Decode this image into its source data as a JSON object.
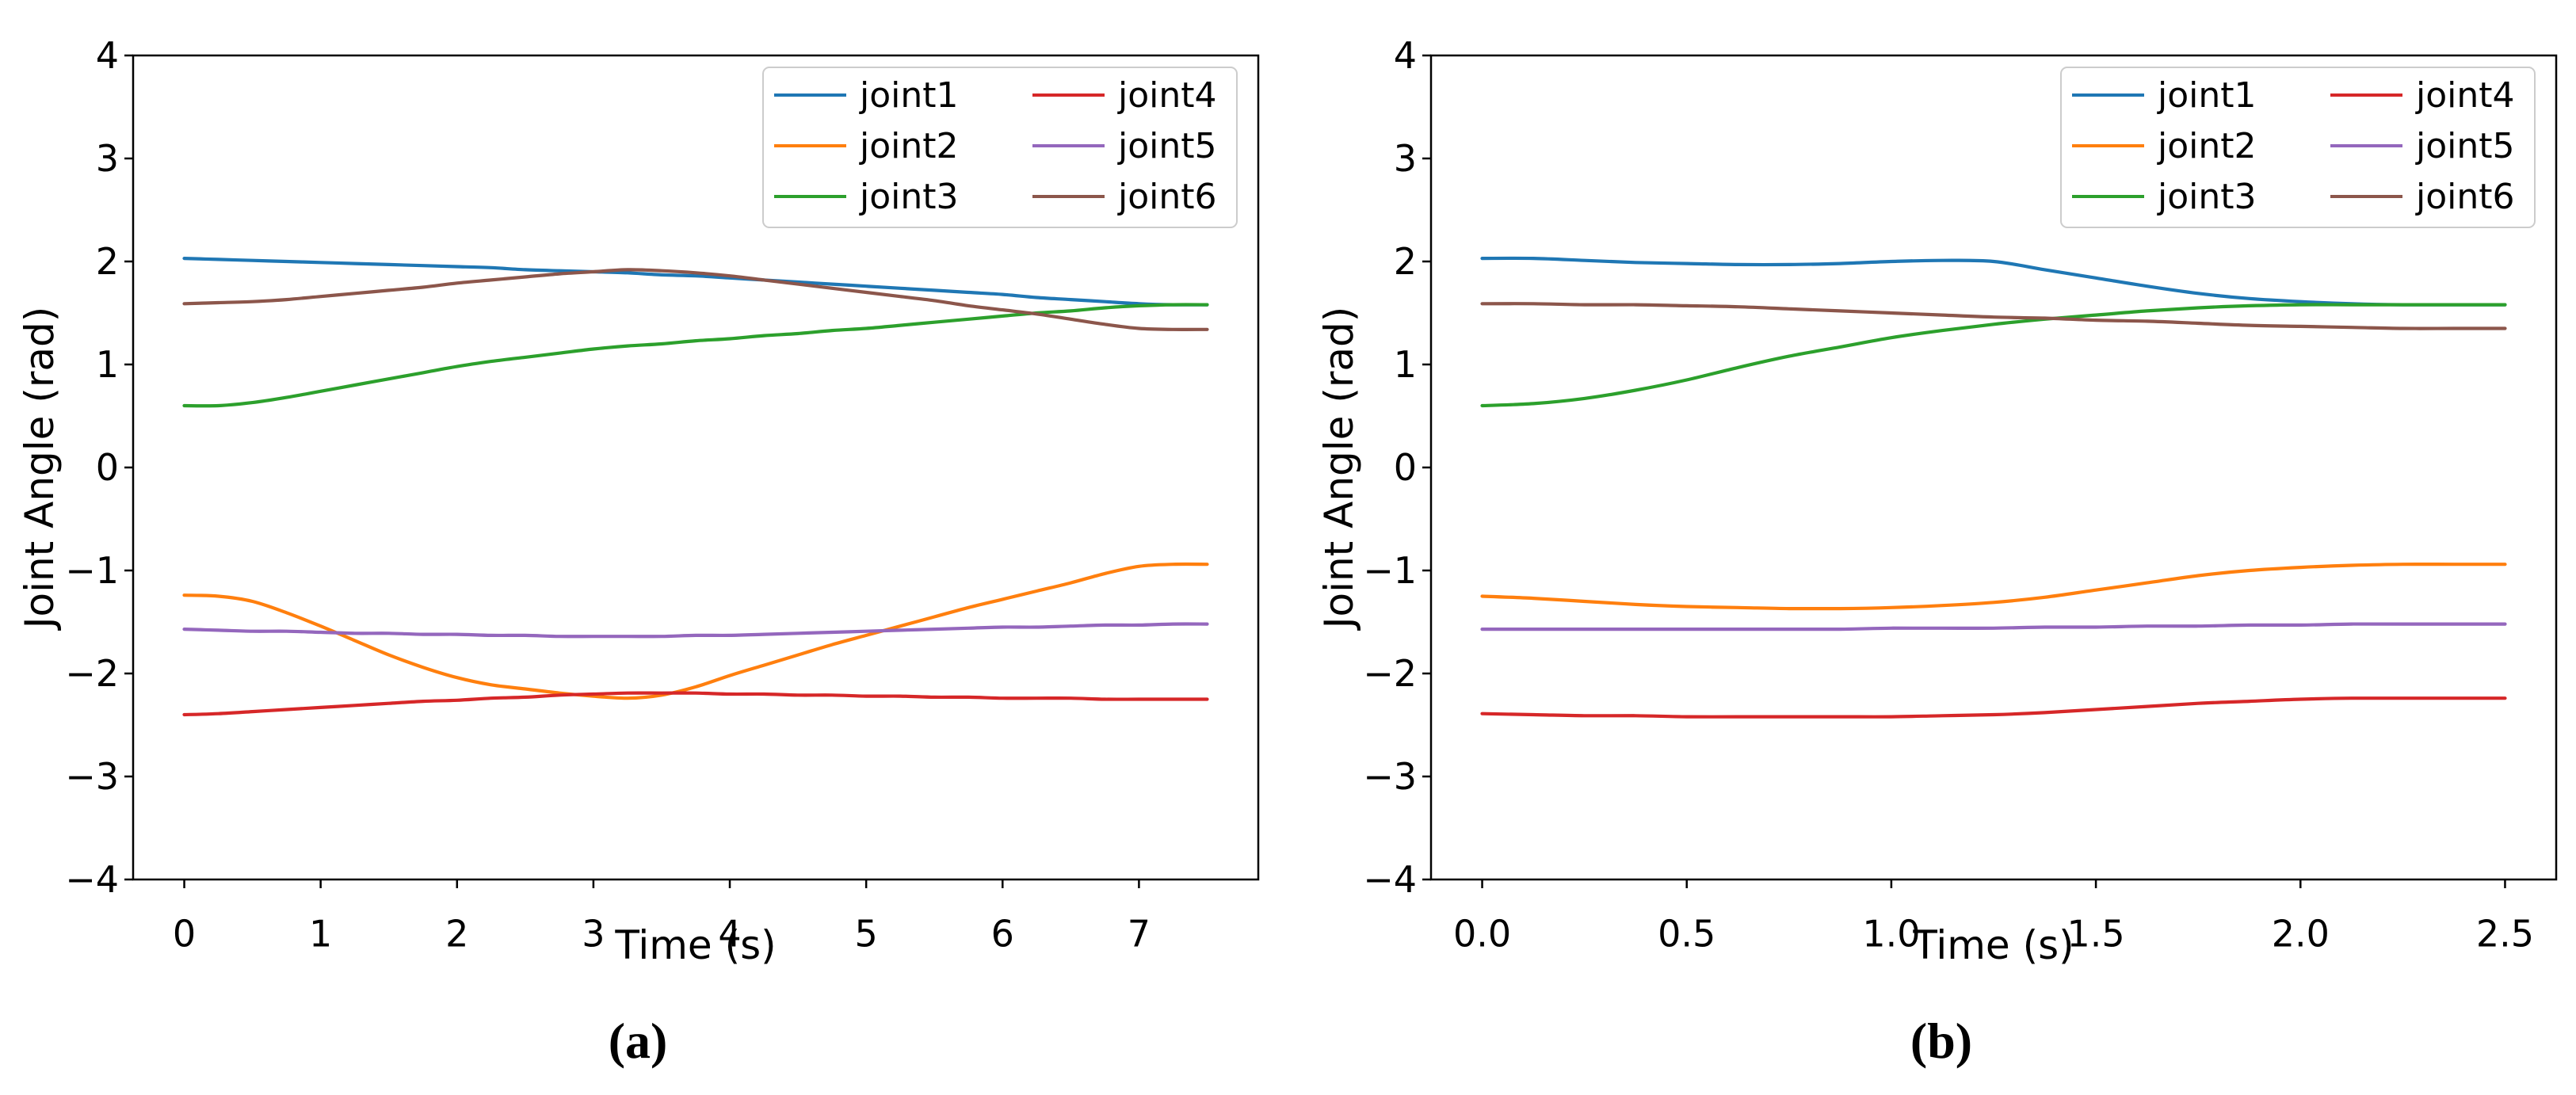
{
  "chart_data": [
    {
      "id": "a",
      "type": "line",
      "caption": "(a)",
      "xlabel": "Time (s)",
      "ylabel": "Joint Angle (rad)",
      "xlim": [
        -0.375,
        7.875
      ],
      "ylim": [
        -4,
        4
      ],
      "grid": false,
      "legend_position": "upper right",
      "xticks": {
        "values": [
          0,
          1,
          2,
          3,
          4,
          5,
          6,
          7
        ],
        "labels": [
          "0",
          "1",
          "2",
          "3",
          "4",
          "5",
          "6",
          "7"
        ]
      },
      "yticks": {
        "values": [
          -4,
          -3,
          -2,
          -1,
          0,
          1,
          2,
          3,
          4
        ],
        "labels": [
          "−4",
          "−3",
          "−2",
          "−1",
          "0",
          "1",
          "2",
          "3",
          "4"
        ]
      },
      "x": [
        0,
        0.25,
        0.5,
        0.75,
        1,
        1.25,
        1.5,
        1.75,
        2,
        2.25,
        2.5,
        2.75,
        3,
        3.25,
        3.5,
        3.75,
        4,
        4.25,
        4.5,
        4.75,
        5,
        5.25,
        5.5,
        5.75,
        6,
        6.25,
        6.5,
        6.75,
        7,
        7.25,
        7.5
      ],
      "series": [
        {
          "name": "joint1",
          "color": "#1f77b4",
          "values": [
            2.03,
            2.02,
            2.01,
            2.0,
            1.99,
            1.98,
            1.97,
            1.96,
            1.95,
            1.94,
            1.92,
            1.91,
            1.9,
            1.89,
            1.87,
            1.86,
            1.84,
            1.82,
            1.8,
            1.78,
            1.76,
            1.74,
            1.72,
            1.7,
            1.68,
            1.65,
            1.63,
            1.61,
            1.59,
            1.58,
            1.58
          ]
        },
        {
          "name": "joint2",
          "color": "#ff7f0e",
          "values": [
            -1.24,
            -1.25,
            -1.3,
            -1.41,
            -1.54,
            -1.68,
            -1.82,
            -1.94,
            -2.04,
            -2.11,
            -2.15,
            -2.19,
            -2.22,
            -2.24,
            -2.21,
            -2.13,
            -2.02,
            -1.92,
            -1.82,
            -1.72,
            -1.63,
            -1.54,
            -1.45,
            -1.36,
            -1.28,
            -1.2,
            -1.12,
            -1.03,
            -0.96,
            -0.94,
            -0.94
          ]
        },
        {
          "name": "joint3",
          "color": "#2ca02c",
          "values": [
            0.6,
            0.6,
            0.63,
            0.68,
            0.74,
            0.8,
            0.86,
            0.92,
            0.98,
            1.03,
            1.07,
            1.11,
            1.15,
            1.18,
            1.2,
            1.23,
            1.25,
            1.28,
            1.3,
            1.33,
            1.35,
            1.38,
            1.41,
            1.44,
            1.47,
            1.5,
            1.52,
            1.55,
            1.57,
            1.58,
            1.58
          ]
        },
        {
          "name": "joint4",
          "color": "#d62728",
          "values": [
            -2.4,
            -2.39,
            -2.37,
            -2.35,
            -2.33,
            -2.31,
            -2.29,
            -2.27,
            -2.26,
            -2.24,
            -2.23,
            -2.21,
            -2.2,
            -2.19,
            -2.19,
            -2.19,
            -2.2,
            -2.2,
            -2.21,
            -2.21,
            -2.22,
            -2.22,
            -2.23,
            -2.23,
            -2.24,
            -2.24,
            -2.24,
            -2.25,
            -2.25,
            -2.25,
            -2.25
          ]
        },
        {
          "name": "joint5",
          "color": "#9467bd",
          "values": [
            -1.57,
            -1.58,
            -1.59,
            -1.59,
            -1.6,
            -1.61,
            -1.61,
            -1.62,
            -1.62,
            -1.63,
            -1.63,
            -1.64,
            -1.64,
            -1.64,
            -1.64,
            -1.63,
            -1.63,
            -1.62,
            -1.61,
            -1.6,
            -1.59,
            -1.58,
            -1.57,
            -1.56,
            -1.55,
            -1.55,
            -1.54,
            -1.53,
            -1.53,
            -1.52,
            -1.52
          ]
        },
        {
          "name": "joint6",
          "color": "#8c564b",
          "values": [
            1.59,
            1.6,
            1.61,
            1.63,
            1.66,
            1.69,
            1.72,
            1.75,
            1.79,
            1.82,
            1.85,
            1.88,
            1.9,
            1.92,
            1.91,
            1.89,
            1.86,
            1.82,
            1.78,
            1.74,
            1.7,
            1.66,
            1.62,
            1.57,
            1.53,
            1.49,
            1.44,
            1.39,
            1.35,
            1.34,
            1.34
          ]
        }
      ]
    },
    {
      "id": "b",
      "type": "line",
      "caption": "(b)",
      "xlabel": "Time (s)",
      "ylabel": "Joint Angle (rad)",
      "xlim": [
        -0.125,
        2.625
      ],
      "ylim": [
        -4,
        4
      ],
      "grid": false,
      "legend_position": "upper right",
      "xticks": {
        "values": [
          0,
          0.5,
          1.0,
          1.5,
          2.0,
          2.5
        ],
        "labels": [
          "0.0",
          "0.5",
          "1.0",
          "1.5",
          "2.0",
          "2.5"
        ]
      },
      "yticks": {
        "values": [
          -4,
          -3,
          -2,
          -1,
          0,
          1,
          2,
          3,
          4
        ],
        "labels": [
          "−4",
          "−3",
          "−2",
          "−1",
          "0",
          "1",
          "2",
          "3",
          "4"
        ]
      },
      "x": [
        0,
        0.125,
        0.25,
        0.375,
        0.5,
        0.625,
        0.75,
        0.875,
        1,
        1.125,
        1.25,
        1.375,
        1.5,
        1.625,
        1.75,
        1.875,
        2,
        2.125,
        2.25,
        2.375,
        2.5
      ],
      "series": [
        {
          "name": "joint1",
          "color": "#1f77b4",
          "values": [
            2.03,
            2.03,
            2.01,
            1.99,
            1.98,
            1.97,
            1.97,
            1.98,
            2.0,
            2.01,
            2.0,
            1.92,
            1.84,
            1.76,
            1.69,
            1.64,
            1.61,
            1.59,
            1.58,
            1.58,
            1.58
          ]
        },
        {
          "name": "joint2",
          "color": "#ff7f0e",
          "values": [
            -1.25,
            -1.27,
            -1.3,
            -1.33,
            -1.35,
            -1.36,
            -1.37,
            -1.37,
            -1.36,
            -1.34,
            -1.31,
            -1.26,
            -1.19,
            -1.12,
            -1.05,
            -1.0,
            -0.97,
            -0.95,
            -0.94,
            -0.94,
            -0.94
          ]
        },
        {
          "name": "joint3",
          "color": "#2ca02c",
          "values": [
            0.6,
            0.62,
            0.67,
            0.75,
            0.85,
            0.97,
            1.08,
            1.17,
            1.26,
            1.33,
            1.39,
            1.44,
            1.48,
            1.52,
            1.55,
            1.57,
            1.58,
            1.58,
            1.58,
            1.58,
            1.58
          ]
        },
        {
          "name": "joint4",
          "color": "#d62728",
          "values": [
            -2.39,
            -2.4,
            -2.41,
            -2.41,
            -2.42,
            -2.42,
            -2.42,
            -2.42,
            -2.42,
            -2.41,
            -2.4,
            -2.38,
            -2.35,
            -2.32,
            -2.29,
            -2.27,
            -2.25,
            -2.24,
            -2.24,
            -2.24,
            -2.24
          ]
        },
        {
          "name": "joint5",
          "color": "#9467bd",
          "values": [
            -1.57,
            -1.57,
            -1.57,
            -1.57,
            -1.57,
            -1.57,
            -1.57,
            -1.57,
            -1.56,
            -1.56,
            -1.56,
            -1.55,
            -1.55,
            -1.54,
            -1.54,
            -1.53,
            -1.53,
            -1.52,
            -1.52,
            -1.52,
            -1.52
          ]
        },
        {
          "name": "joint6",
          "color": "#8c564b",
          "values": [
            1.59,
            1.59,
            1.58,
            1.58,
            1.57,
            1.56,
            1.54,
            1.52,
            1.5,
            1.48,
            1.46,
            1.45,
            1.43,
            1.42,
            1.4,
            1.38,
            1.37,
            1.36,
            1.35,
            1.35,
            1.35
          ]
        }
      ]
    }
  ]
}
